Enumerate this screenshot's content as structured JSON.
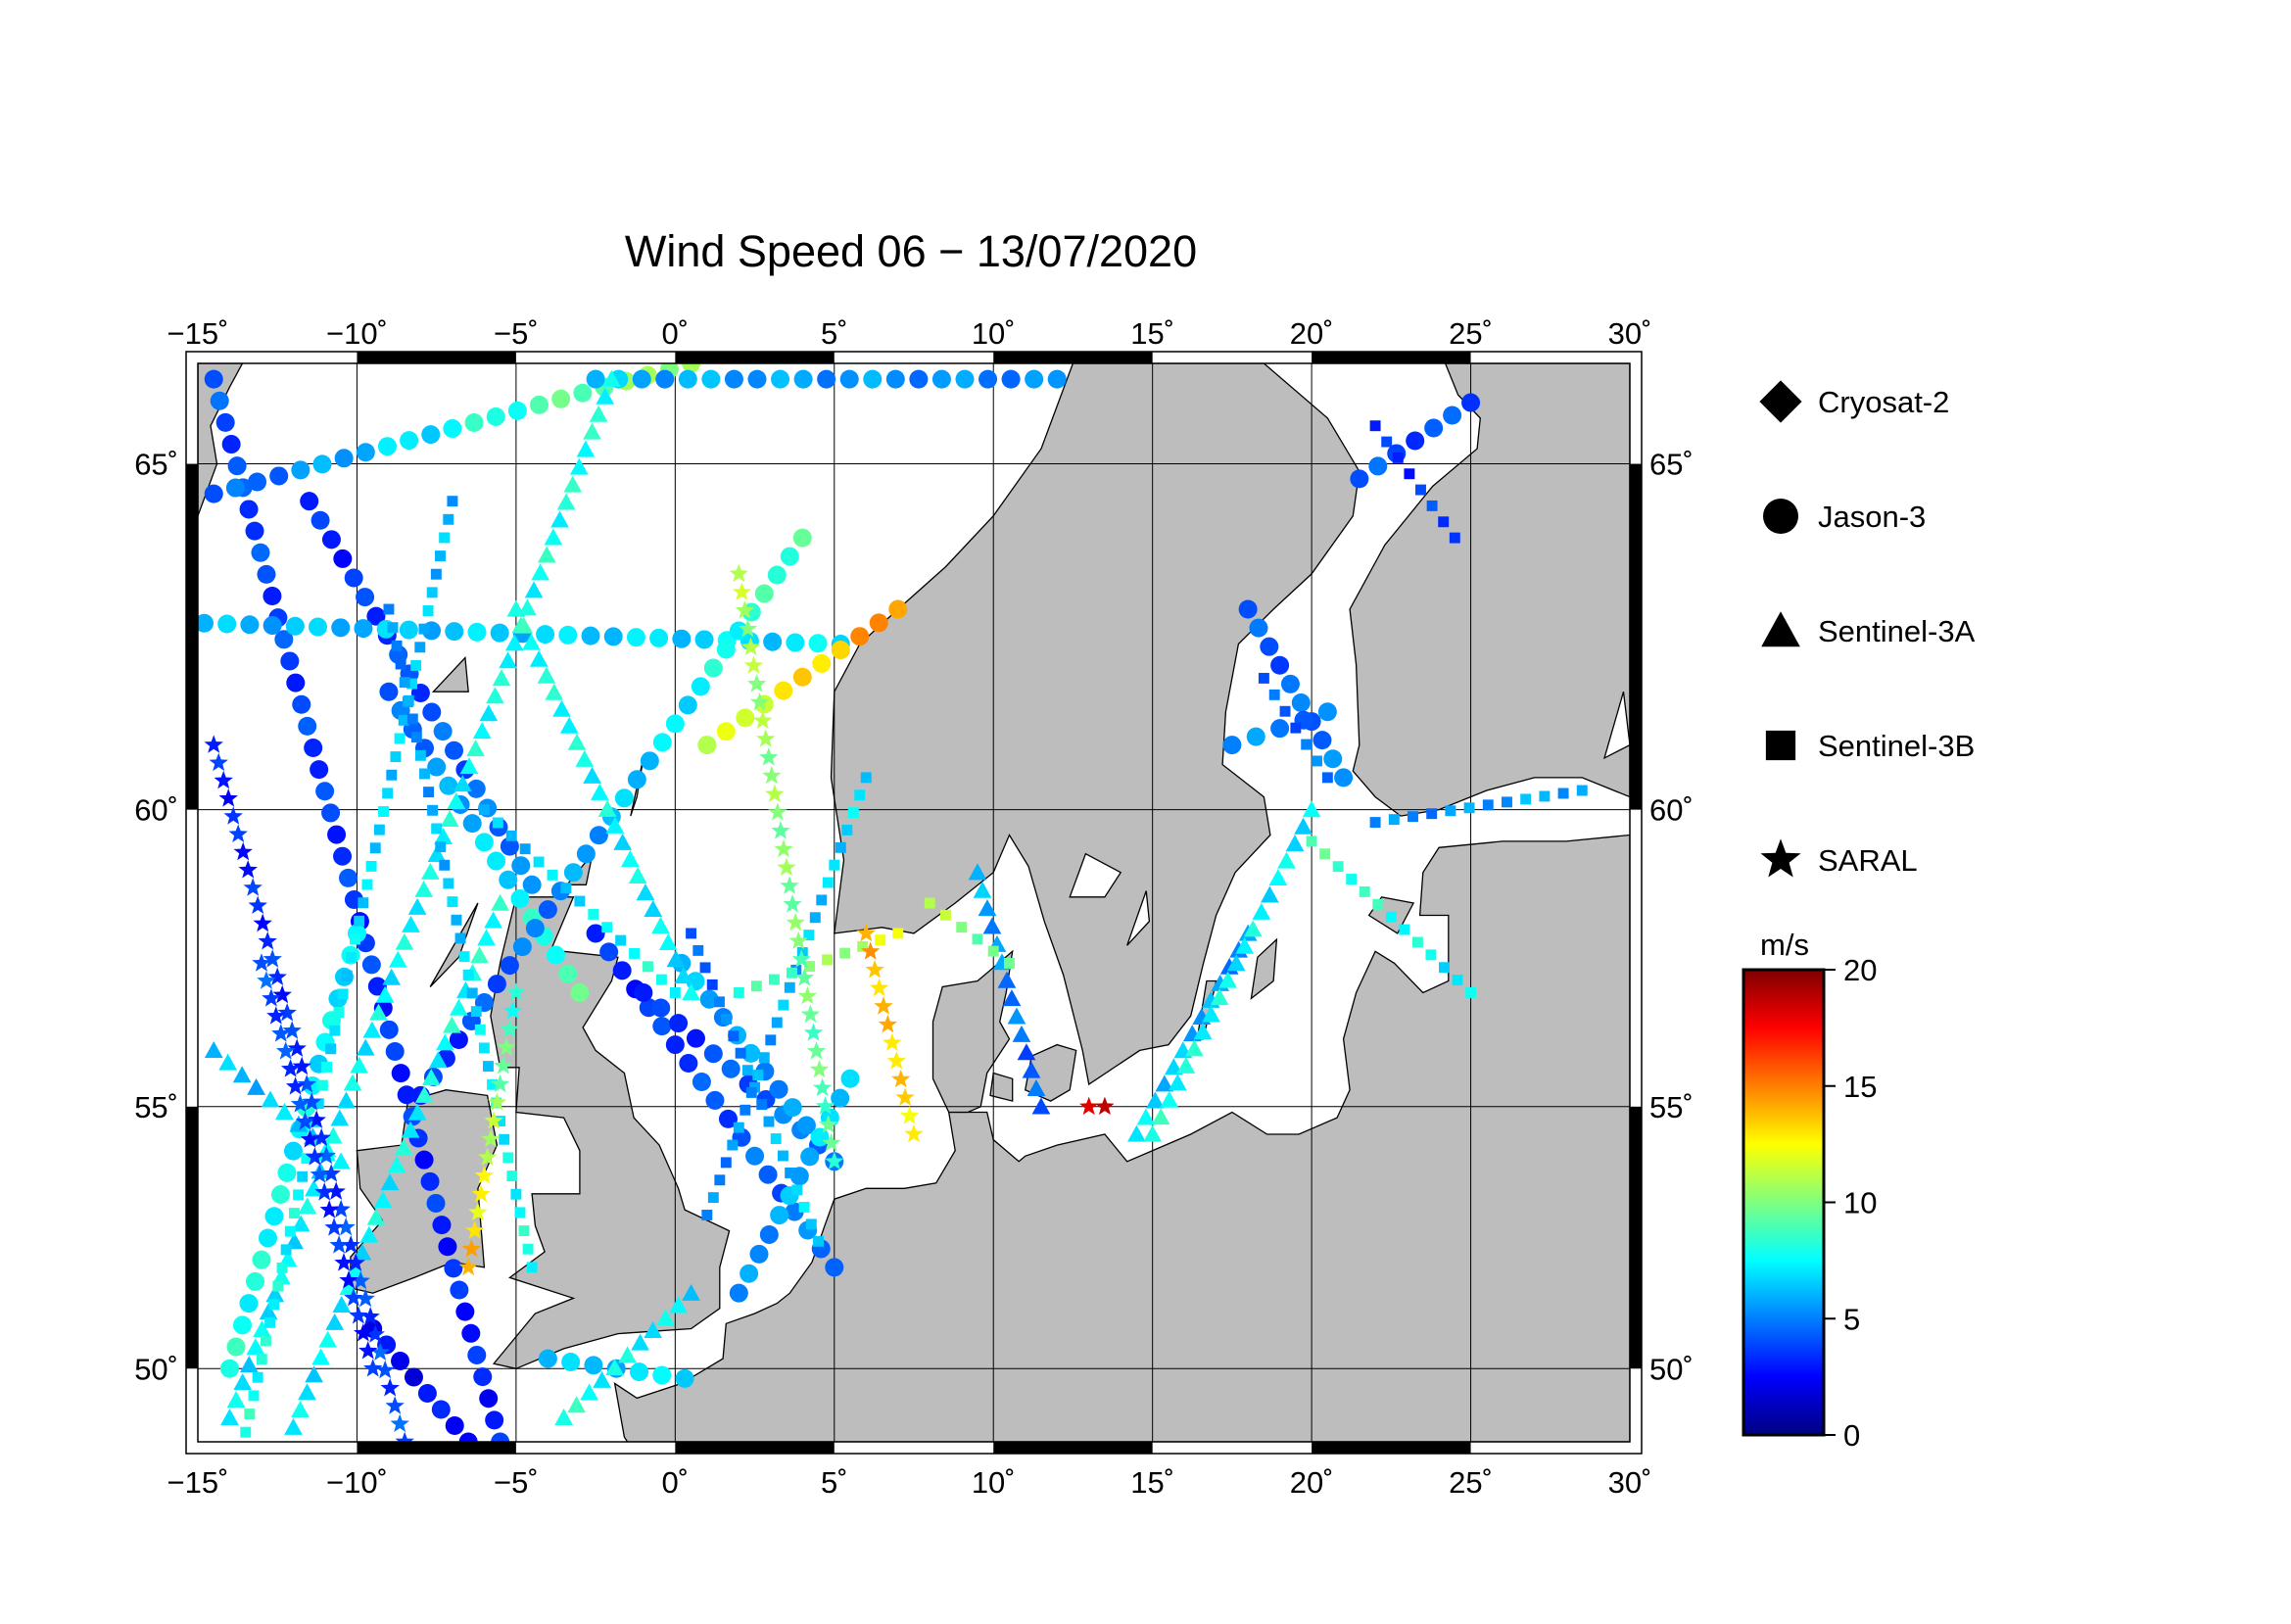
{
  "title": "Wind Speed 06 − 13/07/2020",
  "map": {
    "lon_range": [
      -15,
      30
    ],
    "lat_range": [
      48.5,
      66.3
    ],
    "lon_ticks": [
      -15,
      -10,
      -5,
      0,
      5,
      10,
      15,
      20,
      25,
      30
    ],
    "lat_ticks": [
      50,
      55,
      60,
      65
    ],
    "lon_labels": [
      "−15˚",
      "−10˚",
      "−5˚",
      "0˚",
      "5˚",
      "10˚",
      "15˚",
      "20˚",
      "25˚",
      "30˚"
    ],
    "lat_labels": [
      "50˚",
      "55˚",
      "60˚",
      "65˚"
    ],
    "land_color": "#bdbdbd",
    "sea_color": "#ffffff",
    "grid": true
  },
  "legend": {
    "placement": "right",
    "items": [
      {
        "label": "Cryosat-2",
        "symbol": "diamond"
      },
      {
        "label": "Jason-3",
        "symbol": "circle"
      },
      {
        "label": "Sentinel-3A",
        "symbol": "triangle"
      },
      {
        "label": "Sentinel-3B",
        "symbol": "square"
      },
      {
        "label": "SARAL",
        "symbol": "star"
      }
    ]
  },
  "colorbar": {
    "unit": "m/s",
    "min": 0,
    "max": 20,
    "ticks": [
      0,
      5,
      10,
      15,
      20
    ],
    "tick_labels": [
      "0",
      "5",
      "10",
      "15",
      "20"
    ],
    "colormap": [
      "#00007f",
      "#0000ff",
      "#007fff",
      "#00ffff",
      "#7fff7f",
      "#ffff00",
      "#ff7f00",
      "#ff0000",
      "#7f0000"
    ]
  },
  "chart_data": {
    "type": "scatter",
    "title": "Wind Speed 06 − 13/07/2020",
    "xlabel": "",
    "ylabel": "",
    "xlim": [
      -15,
      30
    ],
    "ylim": [
      48.5,
      66.3
    ],
    "value_unit": "m/s",
    "tracks": [
      {
        "satellite": "Jason-3",
        "start": [
          -14.5,
          66.1
        ],
        "end": [
          -5.5,
          48.5
        ],
        "v0": 4,
        "v1": 3
      },
      {
        "satellite": "Jason-3",
        "start": [
          -14.5,
          64.6
        ],
        "end": [
          0.5,
          66.3
        ],
        "v0": 4,
        "v1": 11
      },
      {
        "satellite": "Jason-3",
        "start": [
          -11.5,
          64.5
        ],
        "end": [
          -4.5,
          58.8
        ],
        "v0": 3,
        "v1": 5
      },
      {
        "satellite": "Jason-3",
        "start": [
          -14.8,
          62.8
        ],
        "end": [
          5.2,
          62.5
        ],
        "v0": 6,
        "v1": 7
      },
      {
        "satellite": "Jason-3",
        "start": [
          -9.0,
          61.8
        ],
        "end": [
          -3.0,
          57.0
        ],
        "v0": 4,
        "v1": 9
      },
      {
        "satellite": "Jason-3",
        "start": [
          -8.0,
          55.2
        ],
        "end": [
          4.0,
          64.0
        ],
        "v0": 3,
        "v1": 9
      },
      {
        "satellite": "Jason-3",
        "start": [
          -2.5,
          58.0
        ],
        "end": [
          5.0,
          52.0
        ],
        "v0": 3,
        "v1": 5
      },
      {
        "satellite": "Jason-3",
        "start": [
          -1.0,
          57.0
        ],
        "end": [
          4.5,
          54.3
        ],
        "v0": 3,
        "v1": 5
      },
      {
        "satellite": "Jason-3",
        "start": [
          -9.5,
          50.8
        ],
        "end": [
          -6.5,
          48.5
        ],
        "v0": 2,
        "v1": 3
      },
      {
        "satellite": "Jason-3",
        "start": [
          0.2,
          57.5
        ],
        "end": [
          5.0,
          54.0
        ],
        "v0": 6,
        "v1": 5
      },
      {
        "satellite": "Jason-3",
        "start": [
          -14.0,
          50.0
        ],
        "end": [
          -10.0,
          58.0
        ],
        "v0": 8,
        "v1": 7
      },
      {
        "satellite": "Jason-3",
        "start": [
          2.0,
          51.5
        ],
        "end": [
          5.5,
          55.5
        ],
        "v0": 5,
        "v1": 7
      },
      {
        "satellite": "Jason-3",
        "start": [
          -2.5,
          66.1
        ],
        "end": [
          12.0,
          66.1
        ],
        "v0": 6,
        "v1": 5
      },
      {
        "satellite": "Jason-3",
        "start": [
          1.0,
          61.0
        ],
        "end": [
          7.0,
          63.0
        ],
        "v0": 11,
        "v1": 15
      },
      {
        "satellite": "Jason-3",
        "start": [
          21.5,
          64.8
        ],
        "end": [
          25.0,
          65.8
        ],
        "v0": 4,
        "v1": 4
      },
      {
        "satellite": "Jason-3",
        "start": [
          18.0,
          63.0
        ],
        "end": [
          21.0,
          60.5
        ],
        "v0": 4,
        "v1": 5
      },
      {
        "satellite": "Jason-3",
        "start": [
          17.5,
          61.0
        ],
        "end": [
          20.5,
          61.5
        ],
        "v0": 5,
        "v1": 5
      },
      {
        "satellite": "Jason-3",
        "start": [
          -4.0,
          50.2
        ],
        "end": [
          0.3,
          49.8
        ],
        "v0": 6,
        "v1": 7
      },
      {
        "satellite": "Sentinel-3A",
        "start": [
          -14.0,
          49.0
        ],
        "end": [
          -2.0,
          66.1
        ],
        "v0": 7,
        "v1": 8
      },
      {
        "satellite": "Sentinel-3A",
        "start": [
          -12.0,
          48.8
        ],
        "end": [
          -5.5,
          58.5
        ],
        "v0": 7,
        "v1": 8
      },
      {
        "satellite": "Sentinel-3A",
        "start": [
          -5.0,
          63.0
        ],
        "end": [
          0.5,
          57.0
        ],
        "v0": 8,
        "v1": 7
      },
      {
        "satellite": "Sentinel-3A",
        "start": [
          -3.5,
          49.0
        ],
        "end": [
          0.5,
          51.5
        ],
        "v0": 8,
        "v1": 7
      },
      {
        "satellite": "Sentinel-3A",
        "start": [
          9.5,
          59.0
        ],
        "end": [
          11.5,
          55.0
        ],
        "v0": 6,
        "v1": 4
      },
      {
        "satellite": "Sentinel-3A",
        "start": [
          14.5,
          54.5
        ],
        "end": [
          18.0,
          58.0
        ],
        "v0": 7,
        "v1": 5
      },
      {
        "satellite": "Sentinel-3A",
        "start": [
          15.0,
          54.5
        ],
        "end": [
          20.0,
          60.0
        ],
        "v0": 8,
        "v1": 7
      },
      {
        "satellite": "Sentinel-3A",
        "start": [
          -14.5,
          56.0
        ],
        "end": [
          -10.5,
          54.0
        ],
        "v0": 6,
        "v1": 7
      },
      {
        "satellite": "Sentinel-3B",
        "start": [
          -13.5,
          48.7
        ],
        "end": [
          -7.0,
          64.5
        ],
        "v0": 8,
        "v1": 6
      },
      {
        "satellite": "Sentinel-3B",
        "start": [
          -9.0,
          63.0
        ],
        "end": [
          -4.5,
          52.0
        ],
        "v0": 5,
        "v1": 8
      },
      {
        "satellite": "Sentinel-3B",
        "start": [
          -6.0,
          60.0
        ],
        "end": [
          0.0,
          57.0
        ],
        "v0": 6,
        "v1": 8
      },
      {
        "satellite": "Sentinel-3B",
        "start": [
          0.5,
          58.0
        ],
        "end": [
          4.5,
          52.5
        ],
        "v0": 4,
        "v1": 7
      },
      {
        "satellite": "Sentinel-3B",
        "start": [
          1.0,
          53.0
        ],
        "end": [
          6.0,
          60.5
        ],
        "v0": 5,
        "v1": 7
      },
      {
        "satellite": "Sentinel-3B",
        "start": [
          2.0,
          57.0
        ],
        "end": [
          7.0,
          58.0
        ],
        "v0": 8,
        "v1": 12
      },
      {
        "satellite": "Sentinel-3B",
        "start": [
          18.5,
          62.0
        ],
        "end": [
          20.5,
          60.5
        ],
        "v0": 4,
        "v1": 5
      },
      {
        "satellite": "Sentinel-3B",
        "start": [
          22.0,
          65.5
        ],
        "end": [
          24.5,
          64.0
        ],
        "v0": 3,
        "v1": 4
      },
      {
        "satellite": "Sentinel-3B",
        "start": [
          20.0,
          59.5
        ],
        "end": [
          25.0,
          57.0
        ],
        "v0": 9,
        "v1": 7
      },
      {
        "satellite": "Sentinel-3B",
        "start": [
          22.0,
          59.8
        ],
        "end": [
          28.5,
          60.3
        ],
        "v0": 5,
        "v1": 6
      },
      {
        "satellite": "Sentinel-3B",
        "start": [
          8.0,
          58.5
        ],
        "end": [
          10.5,
          57.5
        ],
        "v0": 11,
        "v1": 9
      },
      {
        "satellite": "SARAL",
        "start": [
          -14.5,
          61.0
        ],
        "end": [
          -8.5,
          48.5
        ],
        "v0": 3,
        "v1": 4
      },
      {
        "satellite": "SARAL",
        "start": [
          -13.0,
          57.5
        ],
        "end": [
          -9.5,
          50.0
        ],
        "v0": 4,
        "v1": 3
      },
      {
        "satellite": "SARAL",
        "start": [
          6.0,
          58.0
        ],
        "end": [
          7.5,
          54.5
        ],
        "v0": 14,
        "v1": 13
      },
      {
        "satellite": "SARAL",
        "start": [
          2.0,
          63.5
        ],
        "end": [
          5.0,
          54.0
        ],
        "v0": 11,
        "v1": 9
      },
      {
        "satellite": "SARAL",
        "start": [
          -6.5,
          52.0
        ],
        "end": [
          -5.0,
          57.0
        ],
        "v0": 14,
        "v1": 8
      },
      {
        "satellite": "SARAL",
        "start": [
          13.0,
          55.0
        ],
        "end": [
          13.5,
          55.0
        ],
        "v0": 18,
        "v1": 18
      }
    ]
  }
}
